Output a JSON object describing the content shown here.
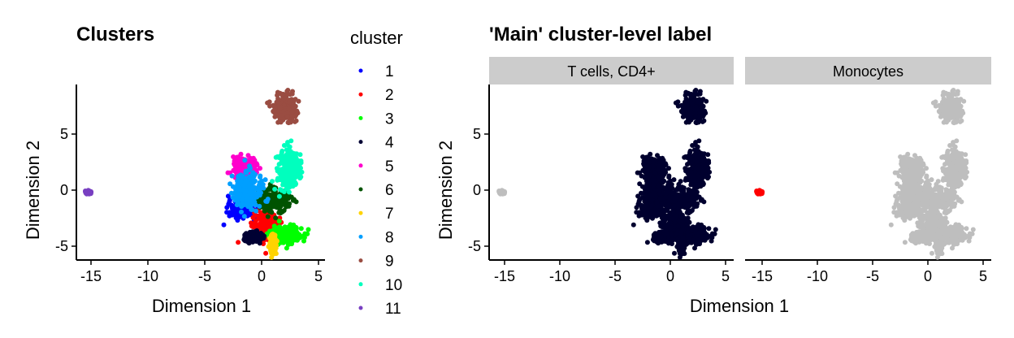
{
  "chart_data": [
    {
      "type": "scatter",
      "title": "Clusters",
      "xlabel": "Dimension 1",
      "ylabel": "Dimension 2",
      "xlim": [
        -16.5,
        5.5
      ],
      "ylim": [
        -6,
        9
      ],
      "xticks": [
        -15,
        -10,
        -5,
        0,
        5
      ],
      "yticks": [
        -5,
        0,
        5
      ],
      "legend": {
        "title": "cluster",
        "placement": "right"
      },
      "clusters": [
        {
          "name": "1",
          "color": "#0000FF",
          "center": [
            -1.7,
            -1.7
          ],
          "spread": [
            0.6,
            0.4
          ]
        },
        {
          "name": "2",
          "color": "#FF0000",
          "center": [
            0.5,
            -3.2
          ],
          "spread": [
            0.6,
            0.6
          ]
        },
        {
          "name": "3",
          "color": "#00FF00",
          "center": [
            2.2,
            -3.9
          ],
          "spread": [
            0.7,
            0.4
          ]
        },
        {
          "name": "4",
          "color": "#000033",
          "center": [
            -0.7,
            -4.2
          ],
          "spread": [
            0.35,
            0.2
          ]
        },
        {
          "name": "5",
          "color": "#FF00CC",
          "center": [
            -1.5,
            2.0
          ],
          "spread": [
            0.5,
            0.4
          ]
        },
        {
          "name": "6",
          "color": "#005300",
          "center": [
            1.0,
            -0.9
          ],
          "spread": [
            0.7,
            0.5
          ]
        },
        {
          "name": "7",
          "color": "#FFD300",
          "center": [
            1.0,
            -4.8
          ],
          "spread": [
            0.15,
            0.4
          ]
        },
        {
          "name": "8",
          "color": "#009FFF",
          "center": [
            -1.2,
            0.0
          ],
          "spread": [
            0.6,
            0.8
          ]
        },
        {
          "name": "9",
          "color": "#9A4D42",
          "center": [
            2.1,
            7.3
          ],
          "spread": [
            0.5,
            0.6
          ]
        },
        {
          "name": "10",
          "color": "#00FFBE",
          "center": [
            2.3,
            1.8
          ],
          "spread": [
            0.5,
            0.9
          ]
        },
        {
          "name": "11",
          "color": "#783FC1",
          "center": [
            -15.3,
            -0.2
          ],
          "spread": [
            0.15,
            0.08
          ]
        }
      ]
    },
    {
      "type": "scatter",
      "title": "'Main' cluster-level label",
      "xlabel": "Dimension 1",
      "ylabel": "Dimension 2",
      "xlim": [
        -16.5,
        5.5
      ],
      "ylim": [
        -6,
        9
      ],
      "xticks": [
        -15,
        -10,
        -5,
        0,
        5
      ],
      "yticks": [
        -5,
        0,
        5
      ],
      "facets": [
        {
          "label": "T cells, CD4+",
          "highlight_clusters": [
            "1",
            "2",
            "3",
            "4",
            "5",
            "6",
            "7",
            "8",
            "9",
            "10"
          ],
          "highlight_color": "#00002E"
        },
        {
          "label": "Monocytes",
          "highlight_clusters": [
            "11"
          ],
          "highlight_color": "#FF0000"
        }
      ],
      "background_color": "#BEBEBE",
      "strip_color": "#CCCCCC"
    }
  ]
}
